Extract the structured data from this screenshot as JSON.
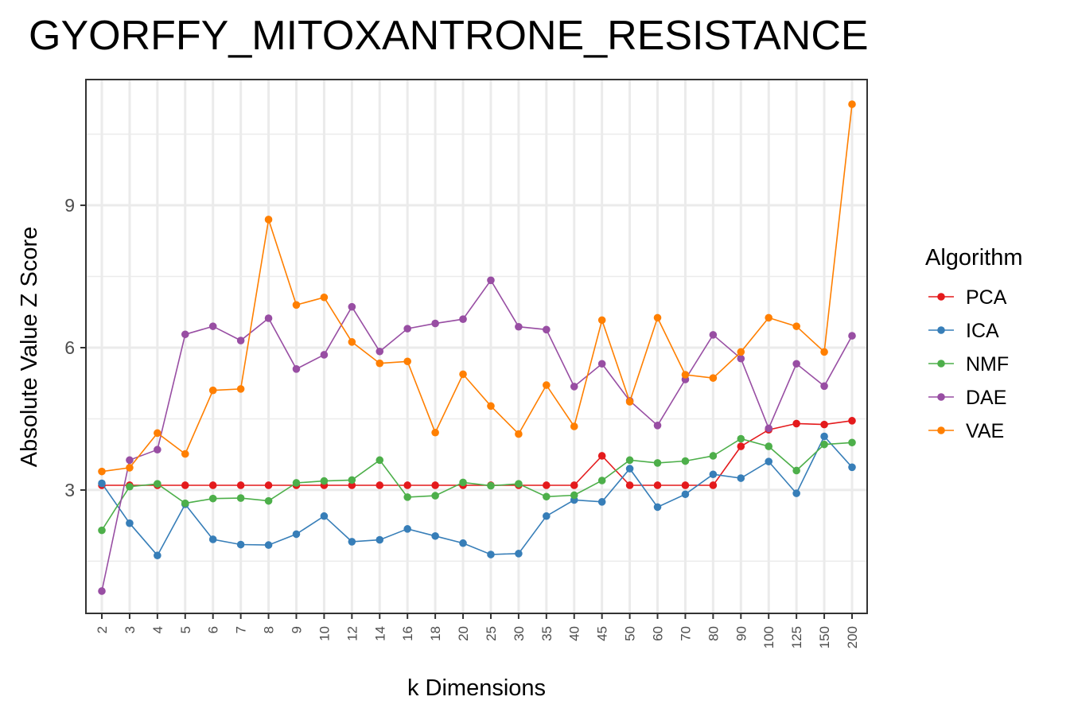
{
  "chart_data": {
    "type": "line",
    "title": "GYORFFY_MITOXANTRONE_RESISTANCE",
    "xlabel": "k Dimensions",
    "ylabel": "Absolute Value Z Score",
    "categories": [
      "2",
      "3",
      "4",
      "5",
      "6",
      "7",
      "8",
      "9",
      "10",
      "12",
      "14",
      "16",
      "18",
      "20",
      "25",
      "30",
      "35",
      "40",
      "45",
      "50",
      "60",
      "70",
      "80",
      "90",
      "100",
      "125",
      "150",
      "200"
    ],
    "y_ticks": [
      3,
      6,
      9
    ],
    "ylim": [
      0.4,
      11.65
    ],
    "grid": true,
    "legend": {
      "title": "Algorithm",
      "position": "right"
    },
    "series": [
      {
        "name": "PCA",
        "color": "#e41a1c",
        "values": [
          3.1,
          3.1,
          3.1,
          3.1,
          3.1,
          3.1,
          3.1,
          3.1,
          3.1,
          3.1,
          3.1,
          3.1,
          3.1,
          3.1,
          3.1,
          3.1,
          3.1,
          3.1,
          3.72,
          3.1,
          3.1,
          3.1,
          3.1,
          3.92,
          4.27,
          4.4,
          4.38,
          4.46
        ]
      },
      {
        "name": "ICA",
        "color": "#377eb8",
        "values": [
          3.14,
          2.3,
          1.62,
          2.7,
          1.96,
          1.85,
          1.84,
          2.07,
          2.45,
          1.91,
          1.95,
          2.18,
          2.03,
          1.88,
          1.64,
          1.66,
          2.45,
          2.79,
          2.75,
          3.45,
          2.64,
          2.91,
          3.33,
          3.25,
          3.6,
          2.93,
          4.13,
          3.48
        ]
      },
      {
        "name": "NMF",
        "color": "#4daf4a",
        "values": [
          2.15,
          3.07,
          3.13,
          2.72,
          2.82,
          2.83,
          2.77,
          3.15,
          3.19,
          3.21,
          3.63,
          2.85,
          2.88,
          3.16,
          3.09,
          3.13,
          2.86,
          2.89,
          3.2,
          3.63,
          3.57,
          3.61,
          3.72,
          4.08,
          3.92,
          3.41,
          3.96,
          4.0
        ]
      },
      {
        "name": "DAE",
        "color": "#984ea3",
        "values": [
          0.87,
          3.63,
          3.85,
          6.28,
          6.45,
          6.15,
          6.62,
          5.55,
          5.85,
          6.86,
          5.92,
          6.4,
          6.51,
          6.6,
          7.42,
          6.44,
          6.38,
          5.18,
          5.66,
          4.88,
          4.36,
          5.33,
          6.27,
          5.77,
          4.3,
          5.66,
          5.19,
          6.25
        ]
      },
      {
        "name": "VAE",
        "color": "#ff7f00",
        "values": [
          3.39,
          3.47,
          4.2,
          3.76,
          5.1,
          5.13,
          8.7,
          6.9,
          7.06,
          6.12,
          5.67,
          5.71,
          4.21,
          5.44,
          4.77,
          4.18,
          5.21,
          4.34,
          6.58,
          4.86,
          6.63,
          5.43,
          5.36,
          5.91,
          6.63,
          6.45,
          5.91,
          11.13
        ]
      }
    ]
  }
}
